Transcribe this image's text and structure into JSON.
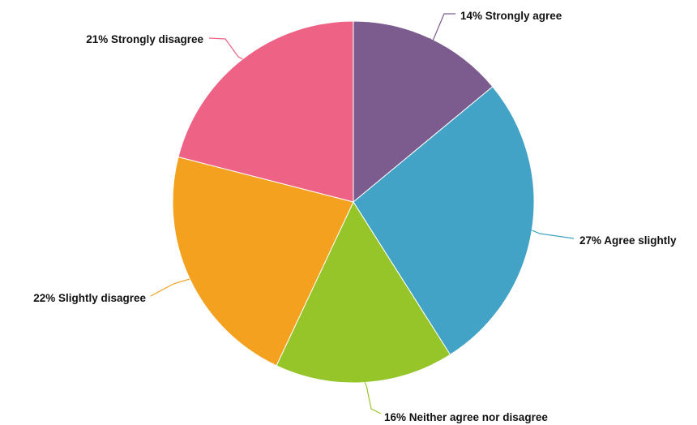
{
  "chart_data": {
    "type": "pie",
    "title": "",
    "slices": [
      {
        "label": "14% Strongly agree",
        "category": "Strongly agree",
        "value": 14,
        "color": "#7c5c8e"
      },
      {
        "label": "27% Agree slightly",
        "category": "Agree slightly",
        "value": 27,
        "color": "#42a3c6"
      },
      {
        "label": "16% Neither agree nor disagree",
        "category": "Neither agree nor disagree",
        "value": 16,
        "color": "#96c52a"
      },
      {
        "label": "22% Slightly disagree",
        "category": "Slightly disagree",
        "value": 22,
        "color": "#f4a11f"
      },
      {
        "label": "21% Strongly disagree",
        "category": "Strongly disagree",
        "value": 21,
        "color": "#ee6385"
      }
    ],
    "legend": "none",
    "start": "top",
    "direction": "clockwise"
  }
}
